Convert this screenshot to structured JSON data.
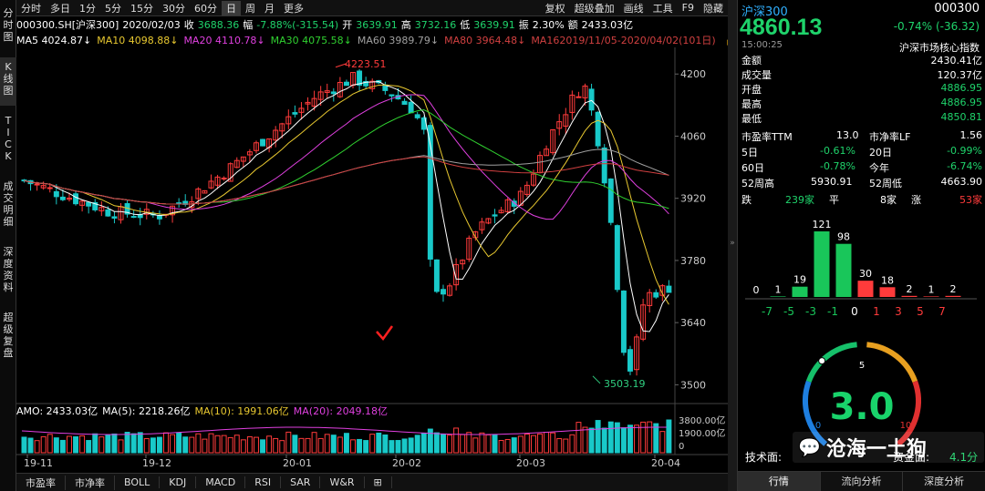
{
  "leftnav": [
    {
      "label": "分时图",
      "active": false
    },
    {
      "label": "K线图",
      "active": true
    },
    {
      "label": "TICK",
      "active": false
    },
    {
      "label": "成交明细",
      "active": false
    },
    {
      "label": "深度资料",
      "active": false
    },
    {
      "label": "超级复盘",
      "active": false
    }
  ],
  "toolbar": {
    "left": [
      "分时",
      "多日",
      "1分",
      "5分",
      "15分",
      "30分",
      "60分",
      "日",
      "周",
      "月",
      "更多"
    ],
    "right": [
      "复权",
      "超级叠加",
      "画线",
      "工具",
      "F9",
      "隐藏"
    ],
    "active": "日"
  },
  "info": {
    "code_name": "000300.SH[沪深300]",
    "date": "2020/02/03",
    "close_label": "收",
    "close": "3688.36",
    "change_label": "幅",
    "change": "-7.88%(-315.54)",
    "open_label": "开",
    "open": "3639.91",
    "high_label": "高",
    "high": "3732.16",
    "low_label": "低",
    "low": "3639.91",
    "amp_label": "振",
    "amp": "2.30%",
    "amount_label": "额",
    "amount": "2433.03亿"
  },
  "ma_row": {
    "ma5": "MA5 4024.87↓",
    "ma10": "MA10 4098.88↓",
    "ma20": "MA20 4110.78↓",
    "ma30": "MA30 4075.58↓",
    "ma60": "MA60 3989.79↓",
    "ma80": "MA80 3964.48↓",
    "ma160": "MA16",
    "range": "2019/11/05-2020/04/02(101日)"
  },
  "colors": {
    "up": "#ff3b3b",
    "down": "#19c9c9",
    "ma5": "#ffffff",
    "ma10": "#e8c830",
    "ma20": "#e040e0",
    "ma30": "#30d030",
    "ma60": "#a0a0a0",
    "ma80": "#d04040",
    "price_tag": "#ff3b3b",
    "low_tag": "#30d080"
  },
  "chart_data": {
    "type": "candlestick",
    "yticks": [
      "4200",
      "4060",
      "3920",
      "3780",
      "3640",
      "3500"
    ],
    "ylim": [
      3470,
      4260
    ],
    "xticks": [
      "19-11",
      "19-12",
      "20-01",
      "20-02",
      "20-03",
      "20-04"
    ],
    "high_label": "4223.51",
    "low_label": "3503.19",
    "vol_yticks": [
      "3800.00亿",
      "1900.00亿",
      "0"
    ]
  },
  "volume_row": {
    "amo": "AMO: 2433.03亿",
    "ma5": "MA(5): 2218.26亿",
    "ma10": "MA(10): 1991.06亿",
    "ma20": "MA(20): 2049.18亿"
  },
  "bottom_tabs": [
    "市盈率",
    "市净率",
    "BOLL",
    "KDJ",
    "MACD",
    "RSI",
    "SAR",
    "W&R",
    "⊞"
  ],
  "right": {
    "name": "沪深300",
    "code": "000300",
    "price": "4860.13",
    "change": "-0.74% (-36.32)",
    "time": "15:00:25",
    "index_name": "沪深市场核心指数",
    "rows": [
      {
        "label": "金额",
        "value": "2430.41亿",
        "color": "white"
      },
      {
        "label": "成交量",
        "value": "120.37亿",
        "color": "white"
      },
      {
        "label": "开盘",
        "value": "4886.95",
        "color": "green"
      },
      {
        "label": "最高",
        "value": "4886.95",
        "color": "green"
      },
      {
        "label": "最低",
        "value": "4850.81",
        "color": "green"
      }
    ],
    "pe_label": "市盈率TTM",
    "pe": "13.0",
    "pb_label": "市净率LF",
    "pb": "1.56",
    "d5_label": "5日",
    "d5": "-0.61%",
    "d20_label": "20日",
    "d20": "-0.99%",
    "d60_label": "60日",
    "d60": "-0.78%",
    "ytd_label": "今年",
    "ytd": "-6.74%",
    "w52h_label": "52周高",
    "w52h": "5930.91",
    "w52l_label": "52周低",
    "w52l": "4663.90",
    "fall_label": "跌",
    "fall": "239家",
    "flat_label": "平",
    "flat": "8家",
    "rise_label": "涨",
    "rise": "53家",
    "dist_values": [
      0,
      1,
      19,
      121,
      98,
      30,
      18,
      2,
      1,
      2
    ],
    "dist_colors": [
      "green",
      "green",
      "green",
      "green",
      "green",
      "red",
      "red",
      "red",
      "red",
      "red"
    ],
    "dist_axis": [
      "-7",
      "-5",
      "-3",
      "-1",
      "0",
      "1",
      "3",
      "5",
      "7"
    ],
    "gauge_value": "3.0",
    "gauge_ticks": [
      "0",
      "5",
      "10"
    ],
    "tech_label": "技术面:",
    "fund_label": "资金面:",
    "fund_value": "4.1分",
    "watermark": "沧海一土狗",
    "tabs": [
      "行情",
      "流向分析",
      "深度分析"
    ]
  }
}
